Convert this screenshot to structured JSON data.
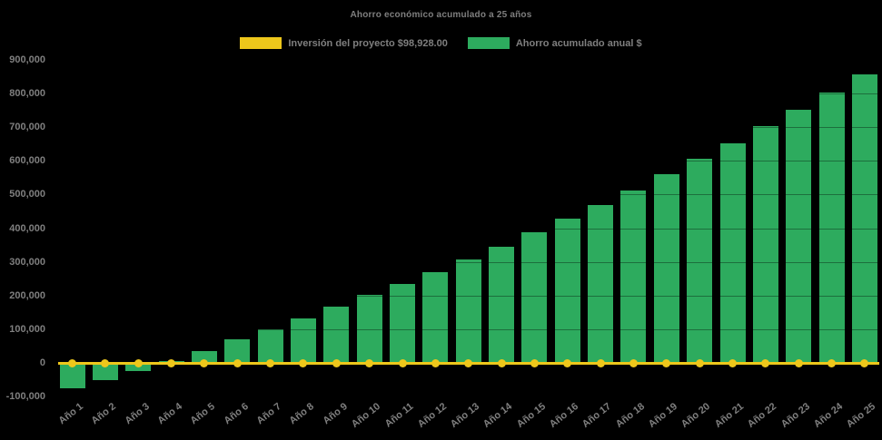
{
  "title": "Ahorro económico acumulado a 25 años",
  "colors": {
    "background": "#000000",
    "bar": "#2dab5e",
    "line": "#eec71b",
    "text": "#7f7f7f"
  },
  "legend": {
    "items": [
      {
        "label": "Inversión del proyecto $98,928.00",
        "swatch_color": "#eec71b"
      },
      {
        "label": "Ahorro acumulado anual $",
        "swatch_color": "#2dab5e"
      }
    ]
  },
  "chart_data": {
    "type": "bar",
    "title": "Ahorro económico acumulado a 25 años",
    "categories": [
      "Año 1",
      "Año 2",
      "Año 3",
      "Año 4",
      "Año 5",
      "Año 6",
      "Año 7",
      "Año 8",
      "Año 9",
      "Año 10",
      "Año 11",
      "Año 12",
      "Año 13",
      "Año 14",
      "Año 15",
      "Año 16",
      "Año 17",
      "Año 18",
      "Año 19",
      "Año 20",
      "Año 21",
      "Año 22",
      "Año 23",
      "Año 24",
      "Año 25"
    ],
    "series": [
      {
        "name": "Ahorro acumulado anual $",
        "type": "bar",
        "color": "#2dab5e",
        "values": [
          -75000,
          -52000,
          -25000,
          6000,
          36000,
          70000,
          100000,
          131000,
          166000,
          202000,
          235000,
          270000,
          308000,
          345000,
          388000,
          428000,
          470000,
          513000,
          560000,
          605000,
          652000,
          702000,
          752000,
          804000,
          856000
        ]
      },
      {
        "name": "Inversión del proyecto $98,928.00",
        "type": "line",
        "color": "#eec71b",
        "marker": "circle",
        "values": [
          0,
          0,
          0,
          0,
          0,
          0,
          0,
          0,
          0,
          0,
          0,
          0,
          0,
          0,
          0,
          0,
          0,
          0,
          0,
          0,
          0,
          0,
          0,
          0,
          0
        ]
      }
    ],
    "xlabel": "",
    "ylabel": "",
    "ylim": [
      -100000,
      900000
    ],
    "ytick_values": [
      900000,
      800000,
      700000,
      600000,
      500000,
      400000,
      300000,
      200000,
      100000,
      0,
      -100000
    ],
    "ytick_labels": [
      "900,000",
      "800,000",
      "700,000",
      "600,000",
      "500,000",
      "400,000",
      "300,000",
      "200,000",
      "100,000",
      "0",
      "-100,000"
    ],
    "grid": "horizontal-faint",
    "legend_position": "top-center",
    "background": "black"
  }
}
